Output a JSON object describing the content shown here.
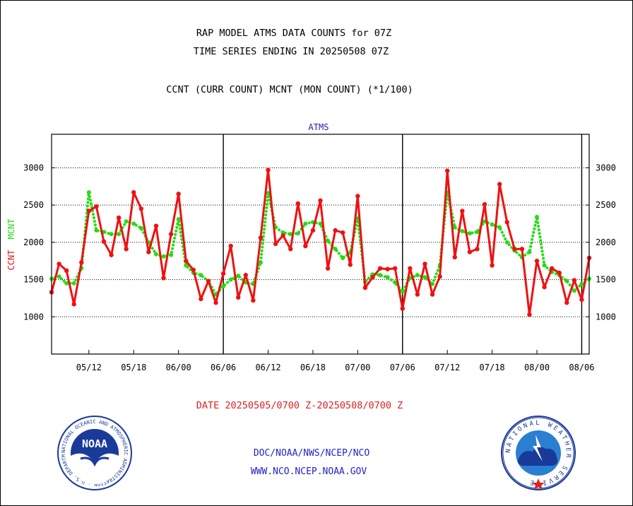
{
  "header": {
    "title_line1": "RAP MODEL ATMS DATA COUNTS for 07Z",
    "title_line2": "TIME SERIES ENDING IN 20250508 07Z",
    "subtitle": "CCNT (CURR COUNT) MCNT (MON COUNT) (*1/100)"
  },
  "footer": {
    "date_range": "DATE 20250505/0700 Z-20250508/0700 Z",
    "link1": "DOC/NOAA/NWS/NCEP/NCO",
    "link2": "WWW.NCO.NCEP.NOAA.GOV",
    "noaa_logo_text": "NOAA",
    "noaa_ring_text": "NATIONAL OCEANIC AND ATMOSPHERIC ADMINISTRATION · U.S. DEPARTMENT OF COMMERCE ·",
    "nws_ring_text": "NATIONAL WEATHER SERVICE"
  },
  "colors": {
    "ccnt": "#ee1111",
    "mcnt": "#22dd11",
    "plot_label": "#2222aa",
    "footer_text": "#2222cc",
    "date_text": "#dd2222"
  },
  "chart_data": {
    "type": "line",
    "plot_label": "ATMS",
    "ylabel_ccnt": "CCNT",
    "ylabel_mcnt": "MCNT",
    "ylim": [
      500,
      3450
    ],
    "yticks": [
      1000,
      1500,
      2000,
      2500,
      3000
    ],
    "xtick_labels": [
      "05/12",
      "05/18",
      "06/00",
      "06/06",
      "06/12",
      "06/18",
      "07/00",
      "07/06",
      "07/12",
      "07/18",
      "08/00",
      "08/06"
    ],
    "xtick_index": [
      6,
      12,
      18,
      24,
      30,
      36,
      42,
      48,
      54,
      60,
      66,
      72
    ],
    "day_separators": [
      24,
      48,
      72
    ],
    "x_start": 1,
    "x_end": 73,
    "series": [
      {
        "name": "CCNT",
        "values": [
          1330,
          1710,
          1620,
          1170,
          1730,
          2420,
          2480,
          2010,
          1830,
          2330,
          1910,
          2670,
          2450,
          1870,
          2220,
          1520,
          2110,
          2650,
          1750,
          1630,
          1240,
          1480,
          1190,
          1580,
          1950,
          1260,
          1560,
          1220,
          2060,
          2970,
          1980,
          2090,
          1910,
          2520,
          1950,
          2160,
          2560,
          1650,
          2160,
          2130,
          1700,
          2620,
          1390,
          1530,
          1650,
          1640,
          1650,
          1110,
          1650,
          1300,
          1710,
          1300,
          1540,
          2960,
          1800,
          2420,
          1870,
          1910,
          2510,
          1690,
          2780,
          2270,
          1910,
          1910,
          1030,
          1750,
          1400,
          1650,
          1590,
          1190,
          1490,
          1230,
          1790
        ]
      },
      {
        "name": "MCNT",
        "values": [
          1510,
          1540,
          1450,
          1450,
          1650,
          2670,
          2160,
          2140,
          2110,
          2110,
          2280,
          2250,
          2190,
          2000,
          1840,
          1810,
          1830,
          2310,
          1690,
          1590,
          1560,
          1480,
          1300,
          1410,
          1500,
          1550,
          1460,
          1440,
          1730,
          2660,
          2200,
          2130,
          2110,
          2120,
          2250,
          2270,
          2250,
          2020,
          1910,
          1790,
          1860,
          2320,
          1470,
          1570,
          1560,
          1530,
          1460,
          1340,
          1520,
          1560,
          1530,
          1440,
          1690,
          2670,
          2200,
          2150,
          2120,
          2140,
          2280,
          2240,
          2200,
          2000,
          1890,
          1800,
          1870,
          2340,
          1690,
          1600,
          1560,
          1480,
          1350,
          1440,
          1510
        ]
      }
    ]
  }
}
